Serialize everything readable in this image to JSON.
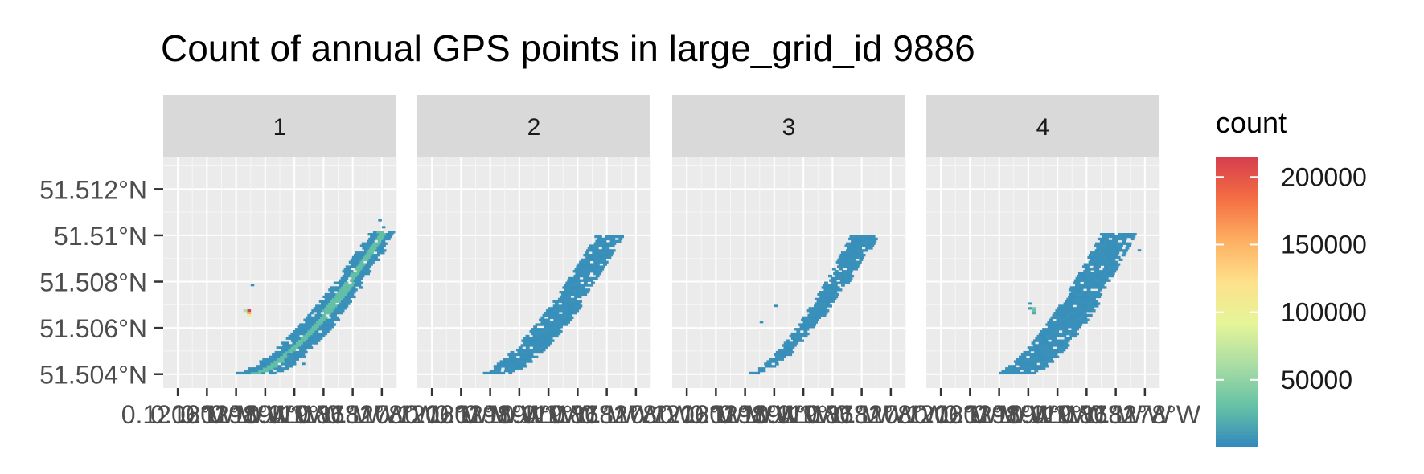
{
  "chart_data": {
    "type": "heatmap",
    "title": "Count of annual GPS points in large_grid_id 9886",
    "xlabel": "",
    "ylabel": "",
    "facets": [
      "1",
      "2",
      "3",
      "4"
    ],
    "y_ticks": [
      {
        "value": 51.504,
        "label": "51.504°N"
      },
      {
        "value": 51.506,
        "label": "51.506°N"
      },
      {
        "value": 51.508,
        "label": "51.508°N"
      },
      {
        "value": 51.51,
        "label": "51.51°N"
      },
      {
        "value": 51.512,
        "label": "51.512°N"
      }
    ],
    "ylim": [
      51.5034,
      51.5134
    ],
    "x_ticks": [
      {
        "value": -0.1206,
        "label": "0.1206°W"
      },
      {
        "value": -0.1202,
        "label": "0.1202°W"
      },
      {
        "value": -0.1198,
        "label": "0.1198°W"
      },
      {
        "value": -0.1194,
        "label": "0.1194°W"
      },
      {
        "value": -0.119,
        "label": "0.119°W"
      },
      {
        "value": -0.1186,
        "label": "0.1186°W"
      },
      {
        "value": -0.1182,
        "label": "0.1182°W"
      },
      {
        "value": -0.1178,
        "label": "0.1178°W"
      }
    ],
    "xlim": [
      -0.1208,
      -0.1176
    ],
    "legend": {
      "title": "count",
      "position": "right",
      "min": 0,
      "max": 215000,
      "ticks": [
        {
          "value": 200000,
          "label": "200000"
        },
        {
          "value": 150000,
          "label": "150000"
        },
        {
          "value": 100000,
          "label": "100000"
        },
        {
          "value": 50000,
          "label": "50000"
        }
      ],
      "colors": [
        "#3288bd",
        "#66c2a5",
        "#abdda4",
        "#e6f598",
        "#fee08b",
        "#fdae61",
        "#f46d43",
        "#d53e4f"
      ]
    },
    "panels": [
      {
        "facet": "1",
        "lat_min": 51.504,
        "lat_max": 51.5102,
        "lon_left_start": -0.1198,
        "lon_left_end": -0.11795,
        "width_bottom": 0.00055,
        "width_top": 0.00035,
        "hotspot": {
          "lon": -0.11965,
          "lat": 51.5067,
          "count": 215000
        },
        "stragglers": [
          [
            -0.11785,
            51.5106
          ],
          [
            -0.1178,
            51.5103
          ],
          [
            -0.1196,
            51.5078
          ],
          [
            -0.1191,
            51.5048
          ],
          [
            -0.1189,
            51.5044
          ]
        ]
      },
      {
        "facet": "2",
        "lat_min": 51.504,
        "lat_max": 51.51,
        "lon_left_start": -0.11995,
        "lon_left_end": -0.11835,
        "width_bottom": 0.00045,
        "width_top": 0.0004,
        "hotspot": null,
        "stragglers": [
          [
            -0.1182,
            51.5096
          ]
        ]
      },
      {
        "facet": "3",
        "lat_min": 51.504,
        "lat_max": 51.51,
        "lon_left_start": -0.11975,
        "lon_left_end": -0.11835,
        "width_bottom": 0.0002,
        "width_top": 0.0004,
        "hotspot": null,
        "stragglers": [
          [
            -0.1194,
            51.5069
          ],
          [
            -0.1196,
            51.5062
          ]
        ]
      },
      {
        "facet": "4",
        "lat_min": 51.504,
        "lat_max": 51.5101,
        "lon_left_start": -0.11985,
        "lon_left_end": -0.1184,
        "width_bottom": 0.00055,
        "width_top": 0.0005,
        "hotspot": {
          "lon": -0.11935,
          "lat": 51.5068,
          "count": 40000
        },
        "stragglers": [
          [
            -0.1194,
            51.507
          ],
          [
            -0.1179,
            51.5093
          ]
        ]
      }
    ]
  }
}
